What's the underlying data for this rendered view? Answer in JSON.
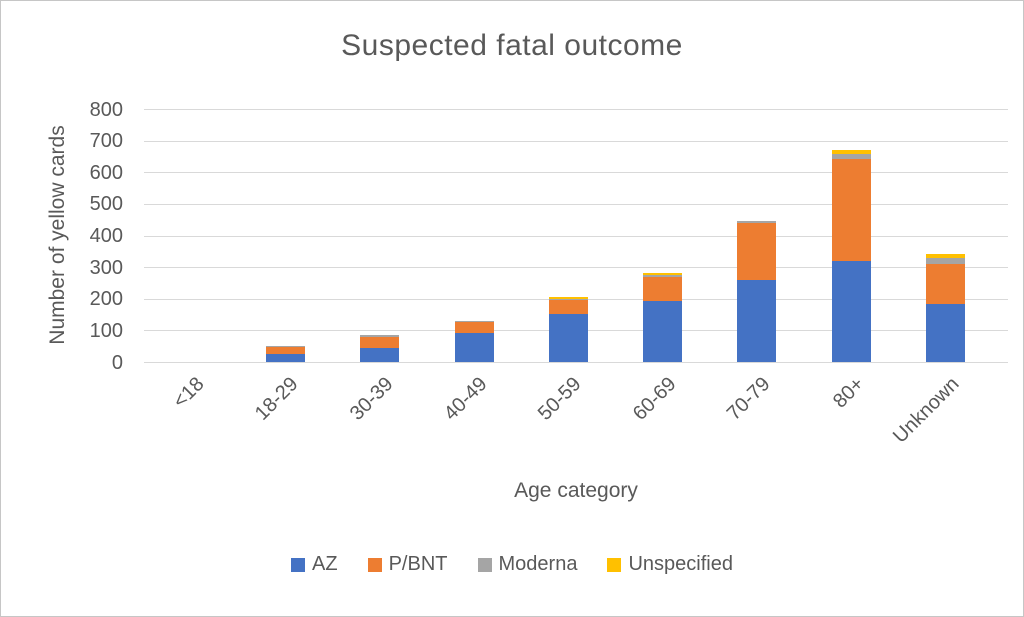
{
  "chart_data": {
    "type": "bar",
    "stacked": true,
    "title": "Suspected fatal outcome",
    "xlabel": "Age category",
    "ylabel": "Number of yellow cards",
    "categories": [
      "<18",
      "18-29",
      "30-39",
      "40-49",
      "50-59",
      "60-69",
      "70-79",
      "80+",
      "Unknown"
    ],
    "series": [
      {
        "name": "AZ",
        "color": "#4472C4",
        "values": [
          0,
          28,
          46,
          92,
          152,
          196,
          262,
          322,
          185
        ]
      },
      {
        "name": "P/BNT",
        "color": "#ED7D31",
        "values": [
          0,
          22,
          36,
          35,
          46,
          74,
          178,
          320,
          128
        ]
      },
      {
        "name": "Moderna",
        "color": "#A5A5A5",
        "values": [
          0,
          2,
          4,
          5,
          3,
          8,
          8,
          16,
          17
        ]
      },
      {
        "name": "Unspecified",
        "color": "#FFC000",
        "values": [
          0,
          0,
          0,
          0,
          6,
          5,
          0,
          14,
          12
        ]
      }
    ],
    "totals": [
      0,
      52,
      86,
      132,
      207,
      283,
      448,
      672,
      342
    ],
    "ylim": [
      0,
      800
    ],
    "y_ticks": [
      0,
      100,
      200,
      300,
      400,
      500,
      600,
      700,
      800
    ],
    "grid": true,
    "legend_position": "bottom",
    "colors": {
      "text": "#595959",
      "gridline": "#d9d9d9",
      "background": "#ffffff"
    }
  }
}
